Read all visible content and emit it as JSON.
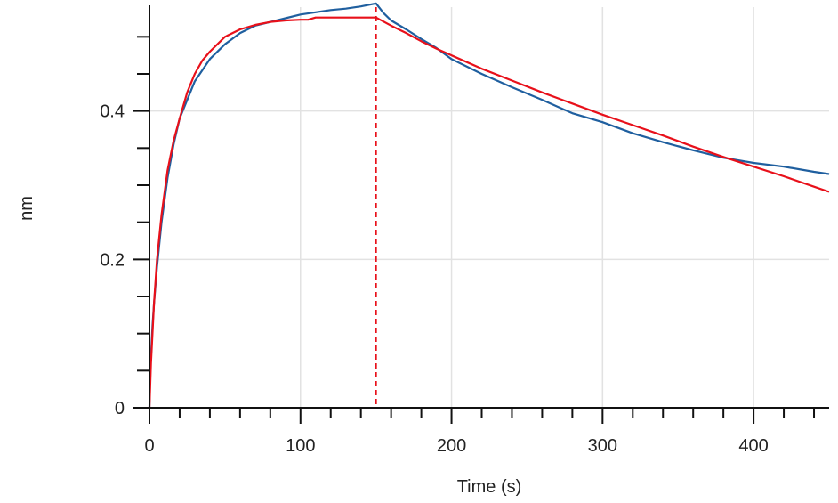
{
  "chart_data": {
    "type": "line",
    "title": "",
    "xlabel": "Time (s)",
    "ylabel": "nm",
    "xlim": [
      0,
      450
    ],
    "ylim": [
      0,
      0.54
    ],
    "x_ticks": [
      0,
      100,
      200,
      300,
      400
    ],
    "x_tick_labels": [
      "0",
      "100",
      "200",
      "300",
      "400"
    ],
    "y_ticks": [
      0,
      0.2,
      0.4
    ],
    "y_tick_labels": [
      "0",
      "0.2",
      "0.4"
    ],
    "grid": true,
    "legend": "none",
    "vertical_markers": [
      0,
      150
    ],
    "series": [
      {
        "color": "#1f5f9f",
        "x": [
          0,
          0.5,
          1,
          2,
          3,
          5,
          8,
          12,
          16,
          20,
          25,
          30,
          35,
          40,
          50,
          60,
          70,
          80,
          90,
          100,
          110,
          120,
          130,
          140,
          150,
          155,
          160,
          170,
          180,
          190,
          200,
          220,
          240,
          260,
          280,
          300,
          320,
          340,
          360,
          380,
          400,
          420,
          440,
          450
        ],
        "y": [
          0.0,
          0.05,
          0.07,
          0.11,
          0.14,
          0.19,
          0.25,
          0.31,
          0.355,
          0.39,
          0.415,
          0.44,
          0.455,
          0.47,
          0.49,
          0.505,
          0.515,
          0.52,
          0.525,
          0.53,
          0.533,
          0.536,
          0.538,
          0.541,
          0.545,
          0.532,
          0.522,
          0.51,
          0.497,
          0.485,
          0.47,
          0.45,
          0.432,
          0.415,
          0.397,
          0.385,
          0.37,
          0.358,
          0.347,
          0.337,
          0.33,
          0.325,
          0.318,
          0.315
        ]
      },
      {
        "color": "#e8101a",
        "x": [
          0,
          0.5,
          1,
          2,
          3,
          5,
          8,
          12,
          16,
          20,
          25,
          30,
          35,
          40,
          50,
          60,
          70,
          80,
          90,
          100,
          105,
          110,
          120,
          130,
          140,
          150,
          160,
          170,
          180,
          190,
          200,
          220,
          240,
          260,
          280,
          300,
          320,
          340,
          360,
          380,
          400,
          420,
          440,
          450
        ],
        "y": [
          0.0,
          0.03,
          0.06,
          0.1,
          0.14,
          0.2,
          0.26,
          0.32,
          0.36,
          0.39,
          0.425,
          0.45,
          0.468,
          0.48,
          0.5,
          0.51,
          0.516,
          0.52,
          0.522,
          0.523,
          0.523,
          0.526,
          0.526,
          0.526,
          0.526,
          0.526,
          0.515,
          0.505,
          0.494,
          0.484,
          0.475,
          0.457,
          0.441,
          0.425,
          0.41,
          0.395,
          0.381,
          0.367,
          0.352,
          0.338,
          0.325,
          0.312,
          0.298,
          0.291
        ]
      }
    ]
  }
}
